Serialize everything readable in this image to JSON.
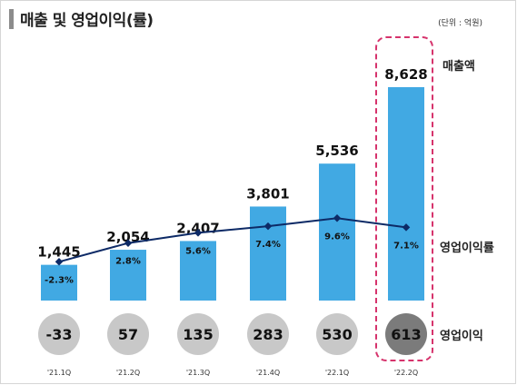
{
  "header": {
    "title": "매출 및 영업이익(률)",
    "unit": "(단위 : 억원)"
  },
  "legend": {
    "revenue": "매출액",
    "margin": "영업이익률",
    "operating_income": "영업이익"
  },
  "colors": {
    "bar": "#41a9e3",
    "line": "#0d2a66",
    "circle": "#c8c8c8",
    "circle_highlight": "#7b7b7b",
    "highlight_border": "#d6336c"
  },
  "chart_data": {
    "type": "bar",
    "categories": [
      "'21.1Q",
      "'21.2Q",
      "'21.3Q",
      "'21.4Q",
      "'22.1Q",
      "'22.2Q"
    ],
    "series": [
      {
        "name": "매출액",
        "type": "bar",
        "values": [
          1445,
          2054,
          2407,
          3801,
          5536,
          8628
        ],
        "labels": [
          "1,445",
          "2,054",
          "2,407",
          "3,801",
          "5,536",
          "8,628"
        ]
      },
      {
        "name": "영업이익률",
        "type": "line",
        "values": [
          -2.3,
          2.8,
          5.6,
          7.4,
          9.6,
          7.1
        ],
        "labels": [
          "-2.3%",
          "2.8%",
          "5.6%",
          "7.4%",
          "9.6%",
          "7.1%"
        ]
      },
      {
        "name": "영업이익",
        "type": "circle",
        "values": [
          -33,
          57,
          135,
          283,
          530,
          613
        ],
        "labels": [
          "-33",
          "57",
          "135",
          "283",
          "530",
          "613"
        ]
      }
    ],
    "highlight_index": 5
  }
}
